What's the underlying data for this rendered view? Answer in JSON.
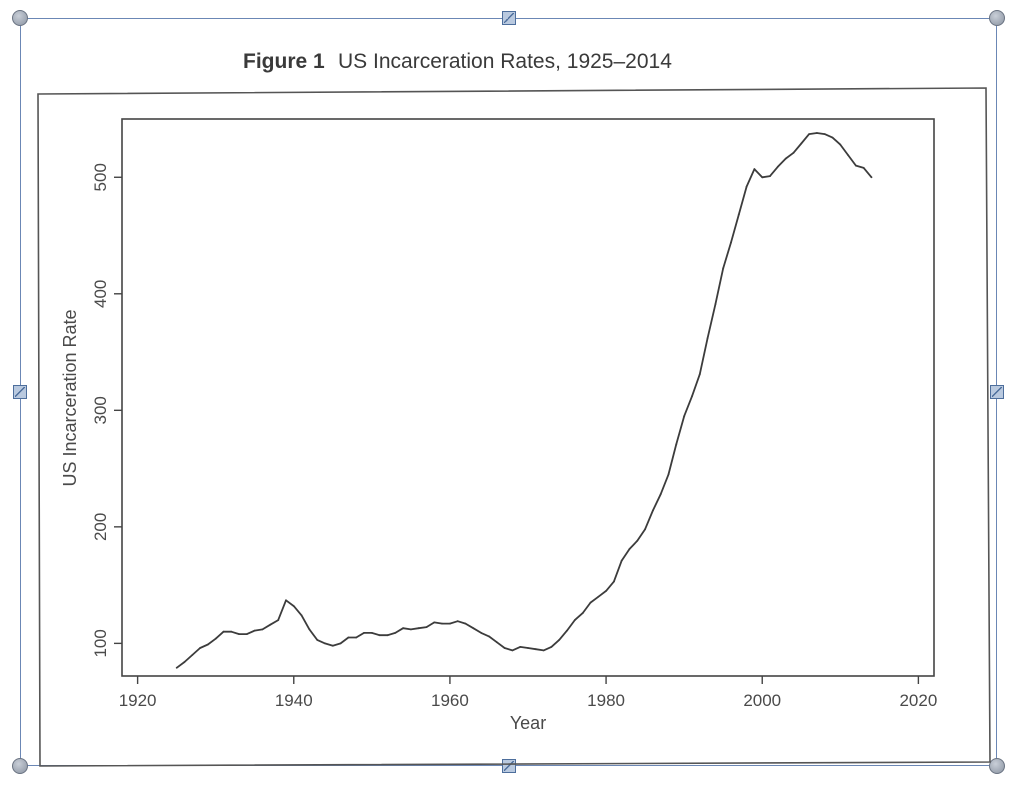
{
  "colors": {
    "frame": "#6b87b5",
    "ink": "#4a4a4a",
    "line": "#3c3c3c"
  },
  "icons": {
    "resize_corner": "round-handle-icon",
    "resize_edge": "square-handle-icon"
  },
  "chart_data": {
    "type": "line",
    "title_prefix": "Figure 1",
    "title": "US Incarceration Rates, 1925–2014",
    "xlabel": "Year",
    "ylabel": "US Incarceration Rate",
    "xlim": [
      1918,
      2022
    ],
    "ylim": [
      72,
      550
    ],
    "xticks": [
      1920,
      1940,
      1960,
      1980,
      2000,
      2020
    ],
    "yticks": [
      100,
      200,
      300,
      400,
      500
    ],
    "grid": false,
    "x": [
      1925,
      1926,
      1927,
      1928,
      1929,
      1930,
      1931,
      1932,
      1933,
      1934,
      1935,
      1936,
      1937,
      1938,
      1939,
      1940,
      1941,
      1942,
      1943,
      1944,
      1945,
      1946,
      1947,
      1948,
      1949,
      1950,
      1951,
      1952,
      1953,
      1954,
      1955,
      1956,
      1957,
      1958,
      1959,
      1960,
      1961,
      1962,
      1963,
      1964,
      1965,
      1966,
      1967,
      1968,
      1969,
      1970,
      1971,
      1972,
      1973,
      1974,
      1975,
      1976,
      1977,
      1978,
      1979,
      1980,
      1981,
      1982,
      1983,
      1984,
      1985,
      1986,
      1987,
      1988,
      1989,
      1990,
      1991,
      1992,
      1993,
      1994,
      1995,
      1996,
      1997,
      1998,
      1999,
      2000,
      2001,
      2002,
      2003,
      2004,
      2005,
      2006,
      2007,
      2008,
      2009,
      2010,
      2011,
      2012,
      2013,
      2014
    ],
    "y": [
      79,
      84,
      90,
      96,
      99,
      104,
      110,
      110,
      108,
      108,
      111,
      112,
      116,
      120,
      137,
      132,
      124,
      112,
      103,
      100,
      98,
      100,
      105,
      105,
      109,
      109,
      107,
      107,
      109,
      113,
      112,
      113,
      114,
      118,
      117,
      117,
      119,
      117,
      113,
      109,
      106,
      101,
      96,
      94,
      97,
      96,
      95,
      94,
      97,
      103,
      111,
      120,
      126,
      135,
      140,
      145,
      153,
      171,
      181,
      188,
      198,
      214,
      228,
      245,
      271,
      295,
      312,
      331,
      362,
      391,
      422,
      444,
      468,
      492,
      507,
      500,
      501,
      509,
      516,
      521,
      529,
      537,
      538,
      537,
      534,
      528,
      519,
      510,
      508,
      500
    ]
  }
}
